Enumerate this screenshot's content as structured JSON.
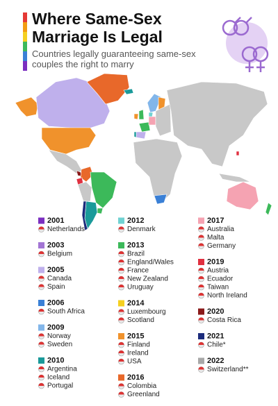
{
  "header": {
    "title": "Where Same-Sex Marriage Is Legal",
    "subtitle": "Countries legally guaranteeing same-sex couples the right to marry"
  },
  "legend": [
    {
      "year": "2001",
      "color": "#7b2fc0",
      "countries": [
        "Netherlands"
      ]
    },
    {
      "year": "2003",
      "color": "#a375d4",
      "countries": [
        "Belgium"
      ]
    },
    {
      "year": "2005",
      "color": "#bfb0ec",
      "countries": [
        "Canada",
        "Spain"
      ]
    },
    {
      "year": "2006",
      "color": "#3a80d6",
      "countries": [
        "South Africa"
      ]
    },
    {
      "year": "2009",
      "color": "#82b6ea",
      "countries": [
        "Norway",
        "Sweden"
      ]
    },
    {
      "year": "2010",
      "color": "#1a9a9a",
      "countries": [
        "Argentina",
        "Iceland",
        "Portugal"
      ]
    },
    {
      "year": "2012",
      "color": "#70d2d2",
      "countries": [
        "Denmark"
      ]
    },
    {
      "year": "2013",
      "color": "#3cb95a",
      "countries": [
        "Brazil",
        "England/Wales",
        "France",
        "New Zealand",
        "Uruguay"
      ]
    },
    {
      "year": "2014",
      "color": "#f5d020",
      "countries": [
        "Luxembourg",
        "Scotland"
      ]
    },
    {
      "year": "2015",
      "color": "#f0922c",
      "countries": [
        "Finland",
        "Ireland",
        "USA"
      ]
    },
    {
      "year": "2016",
      "color": "#e8682a",
      "countries": [
        "Colombia",
        "Greenland"
      ]
    },
    {
      "year": "2017",
      "color": "#f5a3b2",
      "countries": [
        "Australia",
        "Malta",
        "Germany"
      ]
    },
    {
      "year": "2019",
      "color": "#e03040",
      "countries": [
        "Austria",
        "Ecuador",
        "Taiwan",
        "North Ireland"
      ]
    },
    {
      "year": "2020",
      "color": "#8a1a1a",
      "countries": [
        "Costa Rica"
      ]
    },
    {
      "year": "2021",
      "color": "#1c2c7c",
      "countries": [
        "Chile*"
      ]
    },
    {
      "year": "2022",
      "color": "#a8a8a8",
      "countries": [
        "Switzerland**"
      ]
    }
  ]
}
